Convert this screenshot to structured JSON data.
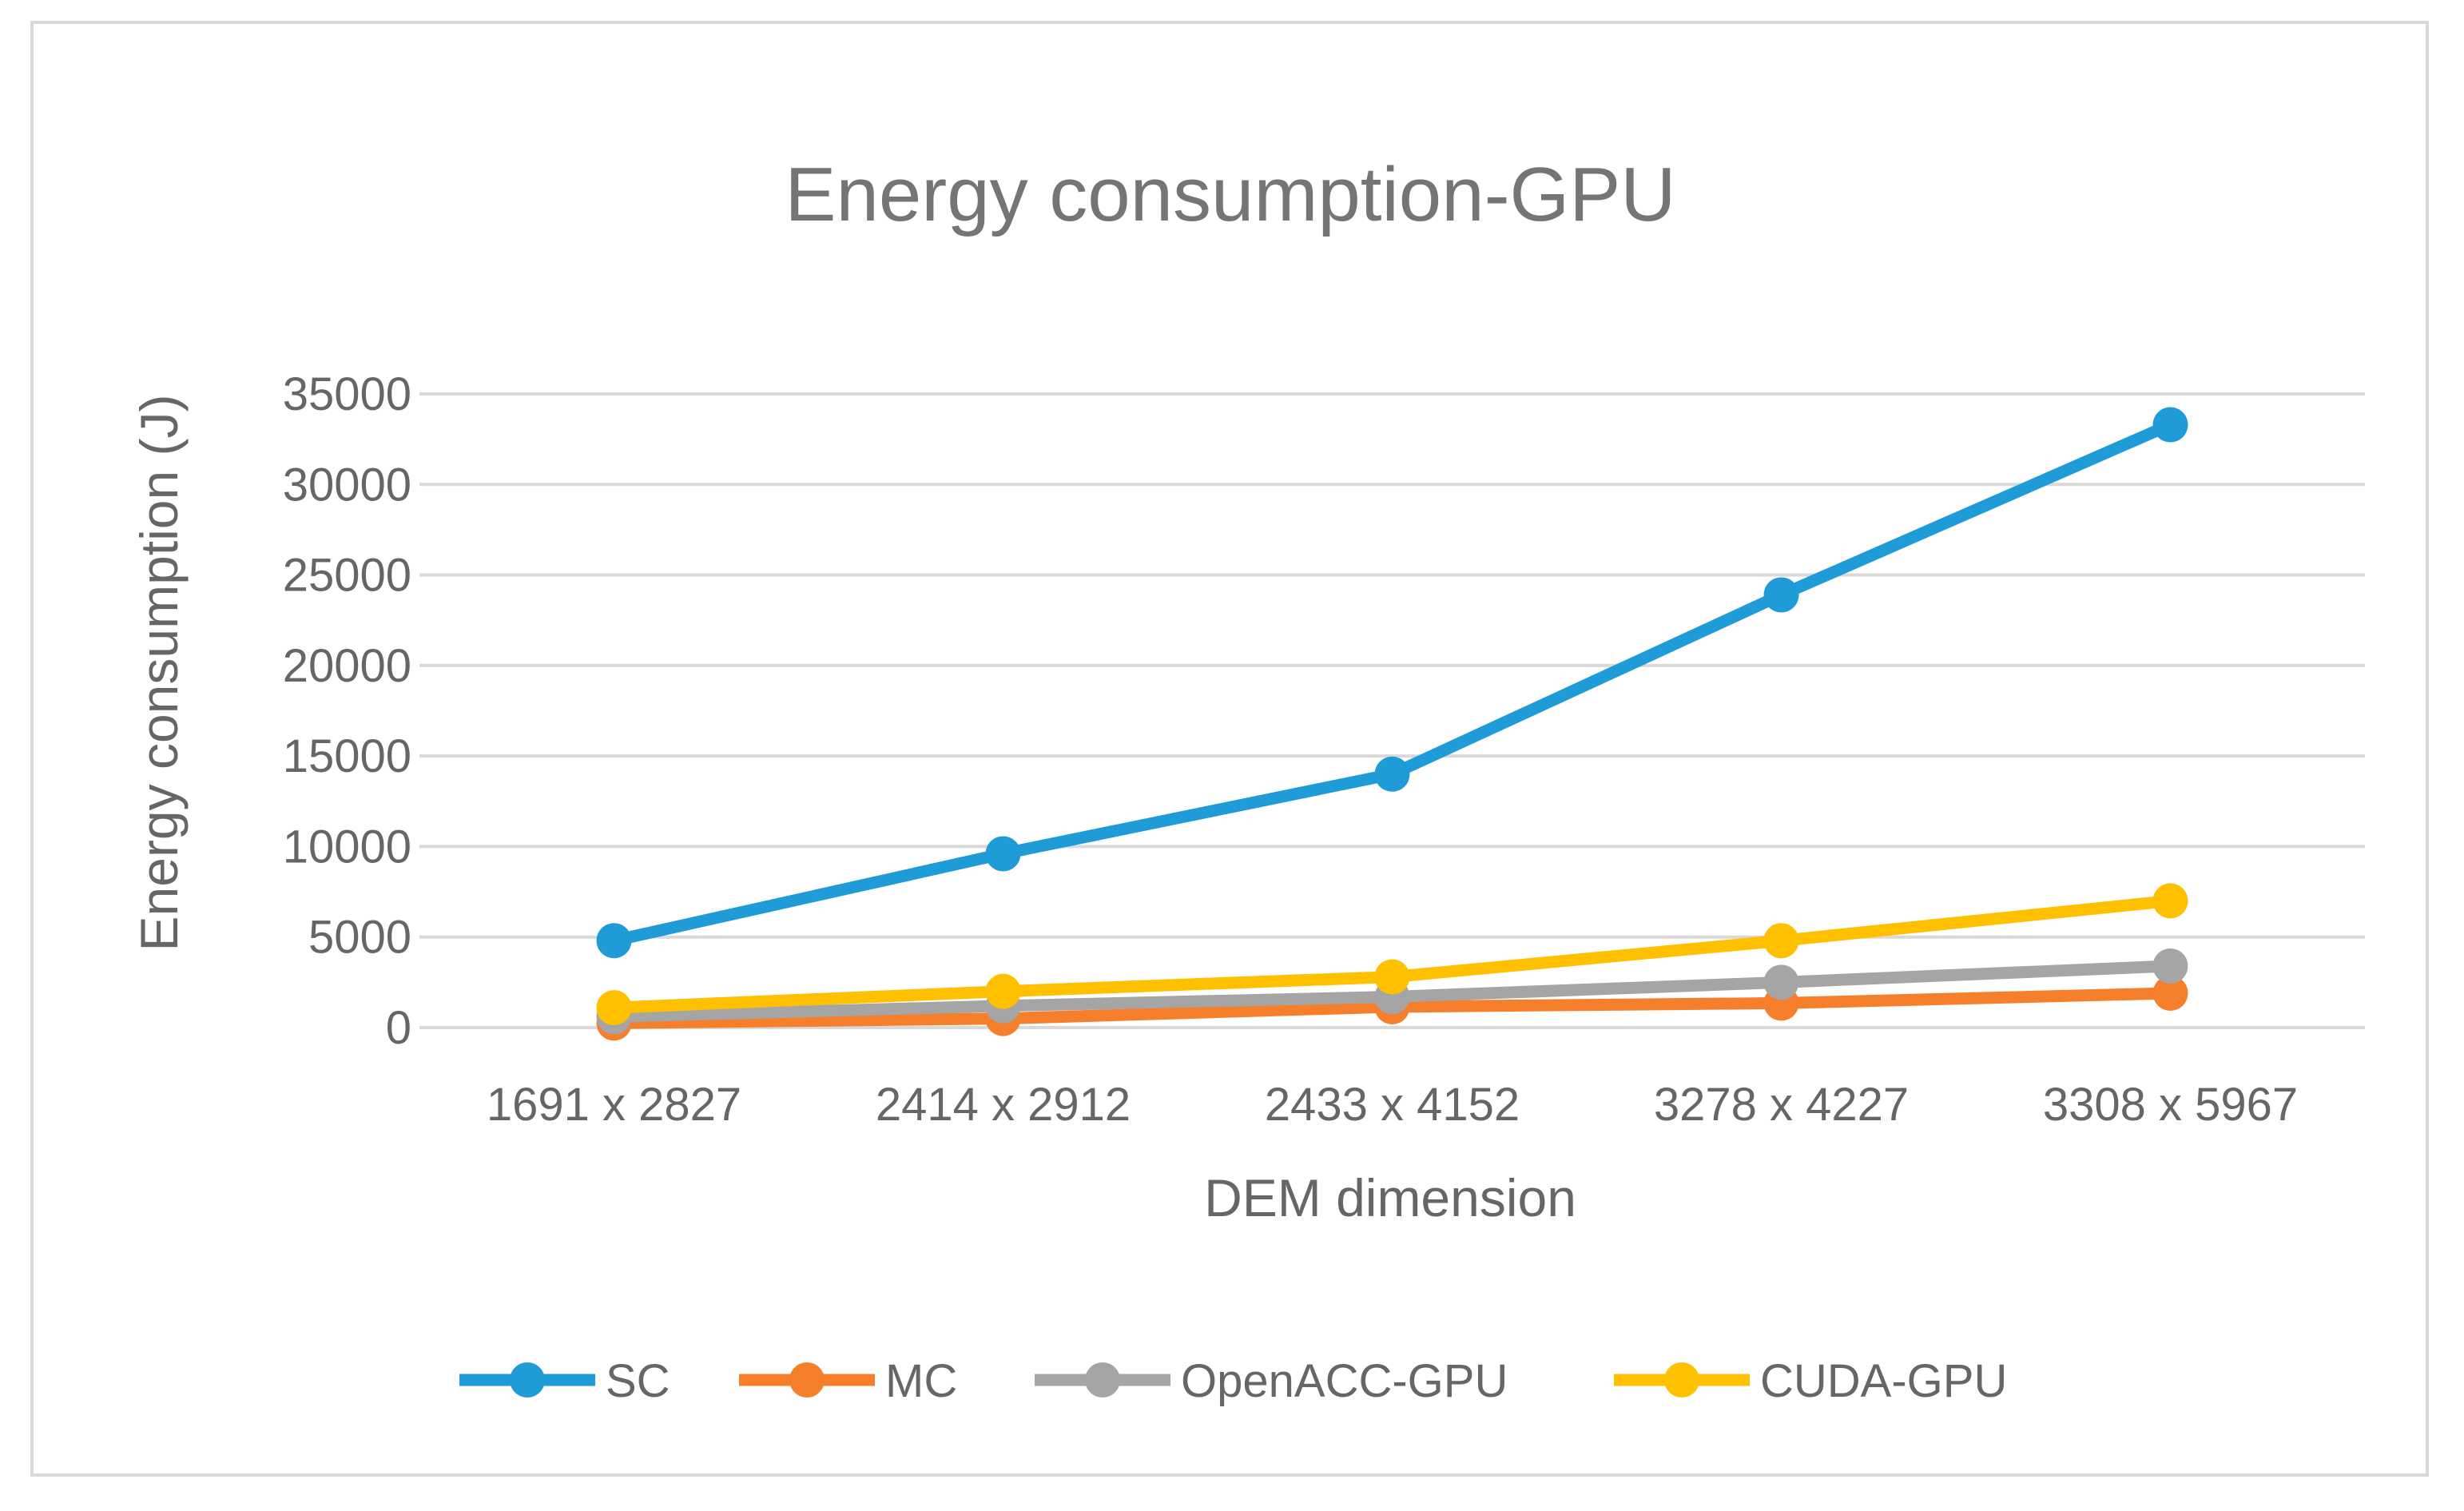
{
  "chart_data": {
    "type": "line",
    "title": "Energy consumption-GPU",
    "xlabel": "DEM dimension",
    "ylabel": "Energy consumption (J)",
    "categories": [
      "1691 x 2827",
      "2414 x 2912",
      "2433 x 4152",
      "3278 x 4227",
      "3308 x 5967"
    ],
    "ylim": [
      0,
      35000
    ],
    "yticks": [
      0,
      5000,
      10000,
      15000,
      20000,
      25000,
      30000,
      35000
    ],
    "ytick_labels": [
      "0",
      "5000",
      "10000",
      "15000",
      "20000",
      "25000",
      "30000",
      "35000"
    ],
    "grid": true,
    "legend_position": "bottom",
    "series": [
      {
        "name": "SC",
        "color": "#1f9bd7",
        "values": [
          4800,
          9600,
          14000,
          23900,
          33300
        ]
      },
      {
        "name": "MC",
        "color": "#f57f2b",
        "values": [
          250,
          500,
          1150,
          1350,
          1900
        ]
      },
      {
        "name": "OpenACC-GPU",
        "color": "#a5a5a5",
        "values": [
          600,
          1200,
          1700,
          2500,
          3400
        ]
      },
      {
        "name": "CUDA-GPU",
        "color": "#ffc000",
        "values": [
          1100,
          2000,
          2800,
          4800,
          7000
        ]
      }
    ]
  }
}
